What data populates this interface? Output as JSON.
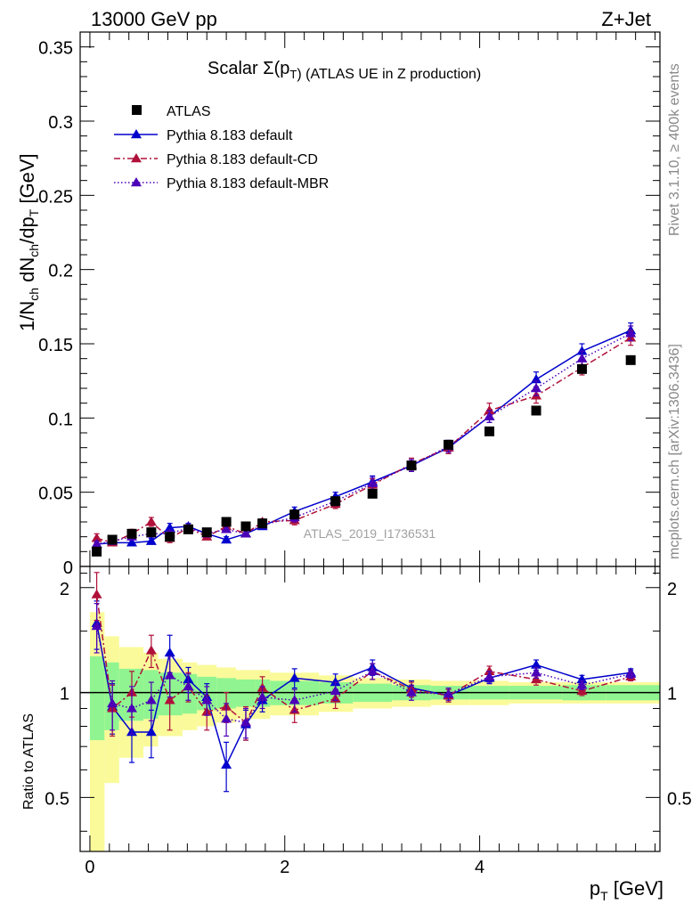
{
  "header": {
    "left": "13000 GeV pp",
    "right": "Z+Jet"
  },
  "side_labels": {
    "rivet": "Rivet 3.1.10, ≥ 400k events",
    "mcplots": "mcplots.cern.ch [arXiv:1306.3436]"
  },
  "watermark": "ATLAS_2019_I1736531",
  "chart_data": {
    "type": "scatter",
    "title": "Scalar Σ(p_T) (ATLAS UE in Z production)",
    "title_parts": {
      "main": "Scalar Σ(p",
      "sub": "T",
      "rest": ") (ATLAS UE in Z production)"
    },
    "ylabel_parts": [
      "1/N",
      "ch",
      " dN",
      "ch",
      "/dp",
      "T",
      " [GeV]"
    ],
    "xlabel_parts": [
      "p",
      "T",
      " [GeV]"
    ],
    "ratio_ylabel": "Ratio to ATLAS",
    "xlim": [
      -0.1,
      5.85
    ],
    "ylim": [
      0,
      0.36
    ],
    "ratio_ylim": [
      0.35,
      2.3
    ],
    "x_ticks": [
      "0",
      "2",
      "4"
    ],
    "y_ticks": [
      "0",
      "0.05",
      "0.1",
      "0.15",
      "0.2",
      "0.25",
      "0.3",
      "0.35"
    ],
    "ratio_ticks": [
      "0.5",
      "1",
      "2"
    ],
    "colors": {
      "data": "#000000",
      "default": "#0000cc",
      "cd": "#b0103a",
      "mbr": "#4b00b8",
      "band_inner": "#90f590",
      "band_outer": "#fafa9a"
    },
    "legend": [
      {
        "key": "data",
        "label": "ATLAS"
      },
      {
        "key": "default",
        "label": "Pythia 8.183 default"
      },
      {
        "key": "cd",
        "label": "Pythia 8.183 default-CD"
      },
      {
        "key": "mbr",
        "label": "Pythia 8.183 default-MBR"
      }
    ],
    "bins": [
      0,
      0.15,
      0.3,
      0.55,
      0.7,
      0.95,
      1.1,
      1.3,
      1.5,
      1.7,
      1.85,
      2.35,
      2.7,
      3.1,
      3.5,
      3.9,
      4.3,
      4.85,
      5.3,
      5.85
    ],
    "x": [
      0.07,
      0.23,
      0.43,
      0.63,
      0.82,
      1.01,
      1.2,
      1.4,
      1.6,
      1.77,
      2.1,
      2.52,
      2.9,
      3.3,
      3.68,
      4.1,
      4.58,
      5.05,
      5.55
    ],
    "atlas": [
      0.01,
      0.018,
      0.022,
      0.023,
      0.02,
      0.025,
      0.023,
      0.03,
      0.027,
      0.029,
      0.035,
      0.044,
      0.049,
      0.068,
      0.082,
      0.091,
      0.105,
      0.133,
      0.139
    ],
    "band_inner": [
      0.27,
      0.22,
      0.17,
      0.16,
      0.14,
      0.13,
      0.11,
      0.1,
      0.09,
      0.09,
      0.08,
      0.07,
      0.06,
      0.05,
      0.045,
      0.045,
      0.045,
      0.05,
      0.05
    ],
    "band_outer": [
      0.7,
      0.45,
      0.35,
      0.3,
      0.25,
      0.22,
      0.2,
      0.18,
      0.16,
      0.16,
      0.14,
      0.12,
      0.1,
      0.09,
      0.08,
      0.08,
      0.07,
      0.07,
      0.07
    ],
    "series": [
      {
        "key": "default",
        "name": "Pythia 8.183 default",
        "dash": "",
        "values": [
          0.015,
          0.016,
          0.016,
          0.017,
          0.026,
          0.027,
          0.022,
          0.018,
          0.022,
          0.027,
          0.037,
          0.047,
          0.057,
          0.068,
          0.08,
          0.101,
          0.126,
          0.145,
          0.159
        ],
        "errors": [
          0.002,
          0.002,
          0.002,
          0.002,
          0.003,
          0.002,
          0.002,
          0.002,
          0.002,
          0.002,
          0.003,
          0.003,
          0.004,
          0.004,
          0.004,
          0.004,
          0.005,
          0.005,
          0.005
        ]
      },
      {
        "key": "cd",
        "name": "Pythia 8.183 default-CD",
        "dash": "7,3,2,3",
        "values": [
          0.019,
          0.016,
          0.022,
          0.03,
          0.019,
          0.026,
          0.02,
          0.027,
          0.022,
          0.03,
          0.031,
          0.042,
          0.055,
          0.069,
          0.08,
          0.105,
          0.115,
          0.134,
          0.154
        ],
        "errors": [
          0.003,
          0.002,
          0.003,
          0.003,
          0.003,
          0.002,
          0.002,
          0.002,
          0.002,
          0.002,
          0.003,
          0.003,
          0.004,
          0.004,
          0.004,
          0.005,
          0.005,
          0.005,
          0.005
        ]
      },
      {
        "key": "mbr",
        "name": "Pythia 8.183 default-MBR",
        "dash": "1.5,2.5",
        "values": [
          0.015,
          0.017,
          0.02,
          0.022,
          0.022,
          0.026,
          0.022,
          0.025,
          0.022,
          0.028,
          0.033,
          0.044,
          0.056,
          0.068,
          0.081,
          0.101,
          0.12,
          0.14,
          0.157
        ],
        "errors": [
          0.002,
          0.002,
          0.002,
          0.002,
          0.002,
          0.002,
          0.002,
          0.002,
          0.002,
          0.002,
          0.003,
          0.003,
          0.004,
          0.004,
          0.004,
          0.004,
          0.005,
          0.005,
          0.005
        ]
      }
    ],
    "ratio_series": [
      {
        "key": "default",
        "values": [
          1.58,
          0.91,
          0.77,
          0.77,
          1.3,
          1.09,
          0.97,
          0.62,
          0.81,
          0.95,
          1.1,
          1.07,
          1.18,
          1.03,
          0.98,
          1.1,
          1.2,
          1.09,
          1.14
        ],
        "errors": [
          0.25,
          0.15,
          0.14,
          0.12,
          0.16,
          0.09,
          0.09,
          0.1,
          0.08,
          0.07,
          0.07,
          0.06,
          0.06,
          0.05,
          0.04,
          0.04,
          0.04,
          0.03,
          0.03
        ]
      },
      {
        "key": "cd",
        "values": [
          1.91,
          0.9,
          1.0,
          1.32,
          0.95,
          1.04,
          0.88,
          0.91,
          0.82,
          1.03,
          0.89,
          0.96,
          1.15,
          1.02,
          0.98,
          1.15,
          1.09,
          1.01,
          1.11
        ],
        "errors": [
          0.3,
          0.15,
          0.15,
          0.14,
          0.17,
          0.1,
          0.1,
          0.09,
          0.09,
          0.08,
          0.07,
          0.06,
          0.06,
          0.05,
          0.04,
          0.04,
          0.04,
          0.03,
          0.03
        ]
      },
      {
        "key": "mbr",
        "values": [
          1.55,
          0.93,
          0.9,
          0.95,
          1.12,
          1.04,
          0.95,
          0.84,
          0.82,
          0.97,
          0.95,
          1.01,
          1.15,
          1.0,
          0.99,
          1.11,
          1.14,
          1.05,
          1.13
        ],
        "errors": [
          0.25,
          0.15,
          0.14,
          0.12,
          0.15,
          0.09,
          0.09,
          0.09,
          0.08,
          0.07,
          0.07,
          0.06,
          0.06,
          0.05,
          0.04,
          0.04,
          0.04,
          0.03,
          0.03
        ]
      }
    ]
  }
}
